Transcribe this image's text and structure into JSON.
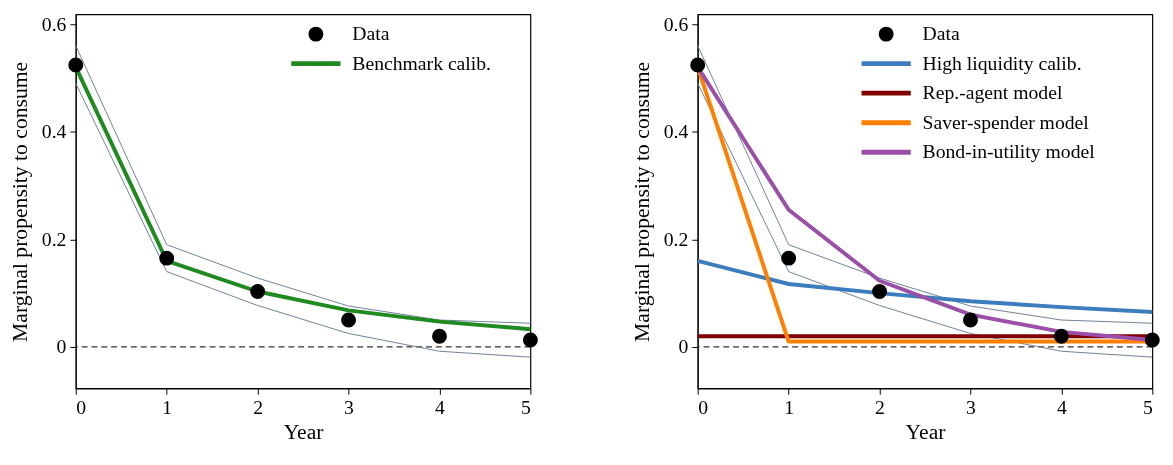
{
  "chart_data": [
    {
      "type": "line",
      "xlabel": "Year",
      "ylabel": "Marginal propensity to consume",
      "x": [
        0,
        1,
        2,
        3,
        4,
        5
      ],
      "xlim": [
        0,
        5
      ],
      "ylim": [
        -0.077,
        0.618
      ],
      "xticks": [
        0,
        1,
        2,
        3,
        4,
        5
      ],
      "yticks": [
        0,
        0.2,
        0.4,
        0.6
      ],
      "grid": false,
      "legend": "top right",
      "ref_lines": [
        {
          "axis": "y",
          "value": 0,
          "color": "#333333",
          "line_style": "dashed"
        }
      ],
      "series": [
        {
          "color": "#6f819a",
          "values": [
            0.56,
            0.19,
            0.128,
            0.076,
            0.05,
            0.044
          ]
        },
        {
          "color": "#6f819a",
          "values": [
            0.49,
            0.14,
            0.077,
            0.025,
            -0.008,
            -0.019
          ]
        },
        {
          "name": "Benchmark calib.",
          "color": "#1f8a1f",
          "values": [
            0.52,
            0.16,
            0.103,
            0.068,
            0.047,
            0.033
          ]
        },
        {
          "name": "Data",
          "type": "scatter",
          "marker": "circle",
          "color": "#000000",
          "values": [
            0.524,
            0.165,
            0.103,
            0.05,
            0.02,
            0.013
          ]
        }
      ]
    },
    {
      "type": "line",
      "xlabel": "Year",
      "ylabel": "Marginal propensity to consume",
      "x": [
        0,
        1,
        2,
        3,
        4,
        5
      ],
      "xlim": [
        0,
        5
      ],
      "ylim": [
        -0.077,
        0.618
      ],
      "xticks": [
        0,
        1,
        2,
        3,
        4,
        5
      ],
      "yticks": [
        0,
        0.2,
        0.4,
        0.6
      ],
      "grid": false,
      "legend": "top right",
      "ref_lines": [
        {
          "axis": "y",
          "value": 0,
          "color": "#333333",
          "line_style": "dashed"
        }
      ],
      "series": [
        {
          "color": "#6f819a",
          "values": [
            0.56,
            0.19,
            0.128,
            0.076,
            0.05,
            0.044
          ]
        },
        {
          "color": "#6f819a",
          "values": [
            0.49,
            0.14,
            0.077,
            0.025,
            -0.008,
            -0.019
          ]
        },
        {
          "name": "High liquidity calib.",
          "color": "#3b7dbd",
          "values": [
            0.16,
            0.117,
            0.1,
            0.085,
            0.074,
            0.065
          ]
        },
        {
          "name": "Rep.-agent model",
          "color": "#800000",
          "values": [
            0.02,
            0.02,
            0.02,
            0.02,
            0.02,
            0.02
          ]
        },
        {
          "name": "Saver-spender model",
          "color": "#ff8000",
          "values": [
            0.52,
            0.01,
            0.01,
            0.01,
            0.01,
            0.01
          ]
        },
        {
          "name": "Bond-in-utility model",
          "color": "#9b4fa8",
          "values": [
            0.52,
            0.255,
            0.123,
            0.06,
            0.028,
            0.013
          ]
        },
        {
          "name": "Data",
          "type": "scatter",
          "marker": "circle",
          "color": "#000000",
          "values": [
            0.524,
            0.165,
            0.103,
            0.05,
            0.02,
            0.013
          ]
        }
      ]
    }
  ]
}
